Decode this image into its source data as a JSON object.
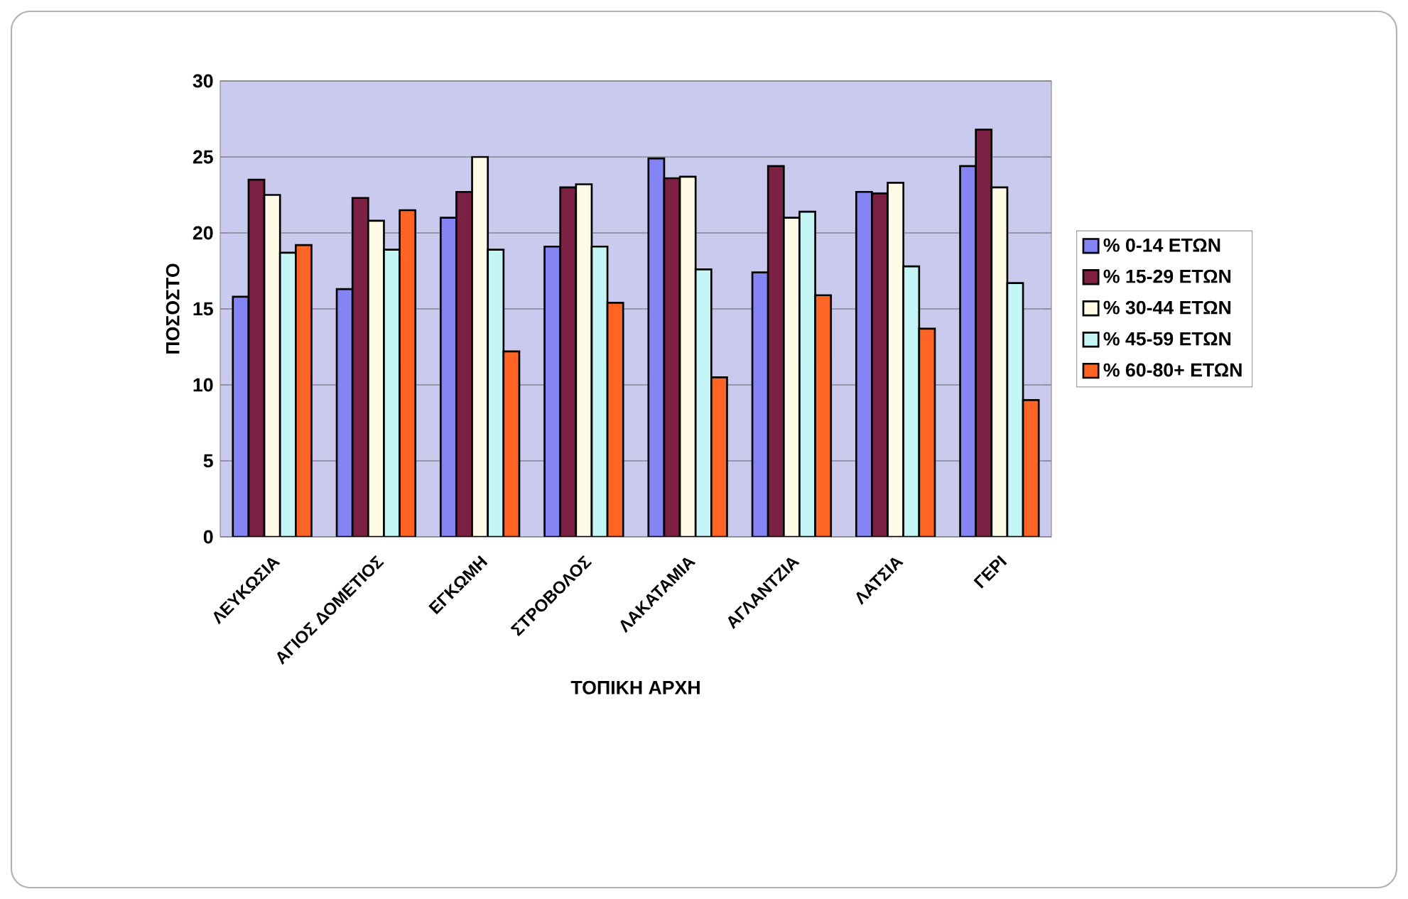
{
  "chart_data": {
    "type": "bar",
    "xlabel": "ΤΟΠΙΚΗ ΑΡΧΗ",
    "ylabel": "ΠΟΣΟΣΤΟ",
    "categories": [
      "ΛΕΥΚΩΣΙΑ",
      "ΑΓΙΟΣ ΔΟΜΕΤΙΟΣ",
      "ΕΓΚΩΜΗ",
      "ΣΤΡΟΒΟΛΟΣ",
      "ΛΑΚΑΤΑΜΙΑ",
      "ΑΓΛΑΝΤΖΙΑ",
      "ΛΑΤΣΙΑ",
      "ΓΕΡΙ"
    ],
    "series": [
      {
        "name": "% 0-14 ΕΤΩΝ",
        "color": "#8484f4",
        "values": [
          15.8,
          16.3,
          21.0,
          19.1,
          24.9,
          17.4,
          22.7,
          24.4
        ]
      },
      {
        "name": "% 15-29 ΕΤΩΝ",
        "color": "#7c2044",
        "values": [
          23.5,
          22.3,
          22.7,
          23.0,
          23.6,
          24.4,
          22.6,
          26.8
        ]
      },
      {
        "name": "% 30-44 ΕΤΩΝ",
        "color": "#fffbe6",
        "values": [
          22.5,
          20.8,
          25.0,
          23.2,
          23.7,
          21.0,
          23.3,
          23.0
        ]
      },
      {
        "name": "% 45-59 ΕΤΩΝ",
        "color": "#c4f6f6",
        "values": [
          18.7,
          18.9,
          18.9,
          19.1,
          17.6,
          21.4,
          17.8,
          16.7
        ]
      },
      {
        "name": "% 60-80+ ΕΤΩΝ",
        "color": "#ff6424",
        "values": [
          19.2,
          21.5,
          12.2,
          15.4,
          10.5,
          15.9,
          13.7,
          9.0
        ]
      }
    ],
    "ylim": [
      0,
      30
    ],
    "yticks": [
      0,
      5,
      10,
      15,
      20,
      25,
      30
    ],
    "grid": "y",
    "legend": "right"
  }
}
